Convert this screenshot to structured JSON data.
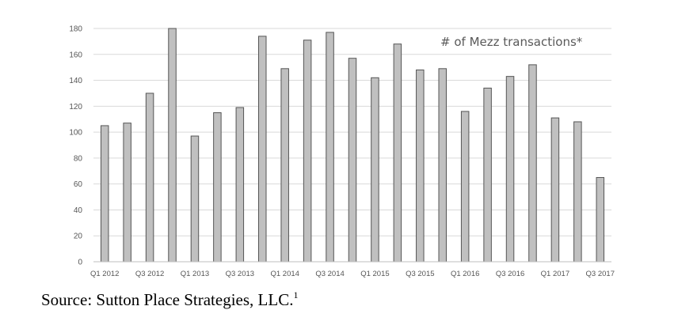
{
  "chart_data": {
    "type": "bar",
    "title": "",
    "annotation": "# of Mezz transactions*",
    "xlabel": "",
    "ylabel": "",
    "ylim": [
      0,
      180
    ],
    "yticks": [
      0,
      20,
      40,
      60,
      80,
      100,
      120,
      140,
      160,
      180
    ],
    "grid": true,
    "categories": [
      "Q1 2012",
      "Q2 2012",
      "Q3 2012",
      "Q4 2012",
      "Q1 2013",
      "Q2 2013",
      "Q3 2013",
      "Q4 2013",
      "Q1 2014",
      "Q2 2014",
      "Q3 2014",
      "Q4 2014",
      "Q1 2015",
      "Q2 2015",
      "Q3 2015",
      "Q4 2015",
      "Q1 2016",
      "Q2 2016",
      "Q3 2016",
      "Q4 2016",
      "Q1 2017",
      "Q2 2017",
      "Q3 2017"
    ],
    "xtick_labels": [
      "Q1 2012",
      "",
      "Q3 2012",
      "",
      "Q1 2013",
      "",
      "Q3 2013",
      "",
      "Q1 2014",
      "",
      "Q3 2014",
      "",
      "Q1 2015",
      "",
      "Q3 2015",
      "",
      "Q1 2016",
      "",
      "Q3 2016",
      "",
      "Q1 2017",
      "",
      "Q3 2017"
    ],
    "values": [
      105,
      107,
      130,
      180,
      97,
      115,
      119,
      174,
      149,
      171,
      177,
      157,
      142,
      168,
      148,
      149,
      116,
      134,
      143,
      152,
      111,
      108,
      65
    ],
    "colors": {
      "bar_fill": "#c0c0c0",
      "bar_stroke": "#555555",
      "grid": "#d9d9d9",
      "axis": "#bfbfbf"
    }
  },
  "source": {
    "text": "Source: Sutton Place Strategies, LLC.",
    "footnote": "1"
  }
}
